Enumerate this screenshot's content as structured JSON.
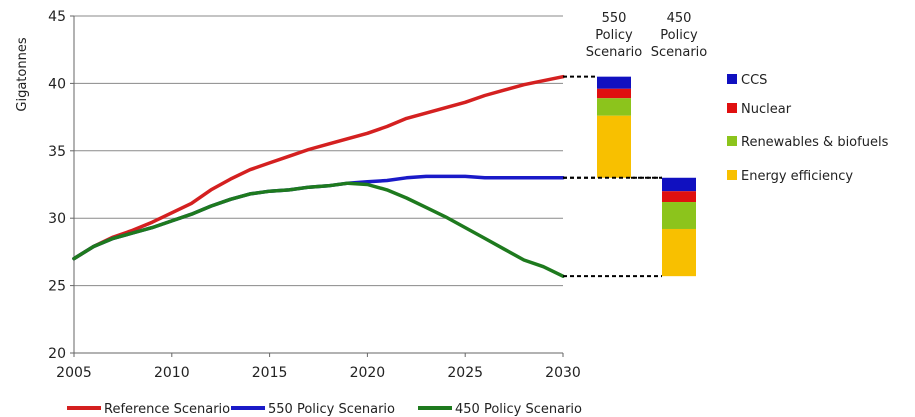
{
  "chart_data": {
    "type": "line",
    "title": "",
    "xlabel": "",
    "ylabel": "Gigatonnes",
    "xlim": [
      2005,
      2030
    ],
    "ylim": [
      20,
      45
    ],
    "x_ticks": [
      "2005",
      "2010",
      "2015",
      "2020",
      "2025",
      "2030"
    ],
    "y_ticks": [
      "20",
      "25",
      "30",
      "35",
      "40",
      "45"
    ],
    "grid": "horizontal",
    "legend_position": "bottom",
    "series": [
      {
        "name": "Reference Scenario",
        "color": "#d42020",
        "x": [
          2005,
          2006,
          2007,
          2008,
          2009,
          2010,
          2011,
          2012,
          2013,
          2014,
          2015,
          2016,
          2017,
          2018,
          2019,
          2020,
          2021,
          2022,
          2023,
          2024,
          2025,
          2026,
          2027,
          2028,
          2029,
          2030
        ],
        "values": [
          27.0,
          27.9,
          28.6,
          29.1,
          29.7,
          30.4,
          31.1,
          32.1,
          32.9,
          33.6,
          34.1,
          34.6,
          35.1,
          35.5,
          35.9,
          36.3,
          36.8,
          37.4,
          37.8,
          38.2,
          38.6,
          39.1,
          39.5,
          39.9,
          40.2,
          40.5
        ]
      },
      {
        "name": "550 Policy Scenario",
        "color": "#1a1ac8",
        "x": [
          2005,
          2006,
          2007,
          2008,
          2009,
          2010,
          2011,
          2012,
          2013,
          2014,
          2015,
          2016,
          2017,
          2018,
          2019,
          2020,
          2021,
          2022,
          2023,
          2024,
          2025,
          2026,
          2027,
          2028,
          2029,
          2030
        ],
        "values": [
          27.0,
          27.9,
          28.5,
          28.9,
          29.3,
          29.8,
          30.3,
          30.9,
          31.4,
          31.8,
          32.0,
          32.1,
          32.3,
          32.4,
          32.6,
          32.7,
          32.8,
          33.0,
          33.1,
          33.1,
          33.1,
          33.0,
          33.0,
          33.0,
          33.0,
          33.0
        ]
      },
      {
        "name": "450 Policy Scenario",
        "color": "#1e7a1e",
        "x": [
          2005,
          2006,
          2007,
          2008,
          2009,
          2010,
          2011,
          2012,
          2013,
          2014,
          2015,
          2016,
          2017,
          2018,
          2019,
          2020,
          2021,
          2022,
          2023,
          2024,
          2025,
          2026,
          2027,
          2028,
          2029,
          2030
        ],
        "values": [
          27.0,
          27.9,
          28.5,
          28.9,
          29.3,
          29.8,
          30.3,
          30.9,
          31.4,
          31.8,
          32.0,
          32.1,
          32.3,
          32.4,
          32.6,
          32.5,
          32.1,
          31.5,
          30.8,
          30.1,
          29.3,
          28.5,
          27.7,
          26.9,
          26.4,
          25.7
        ]
      }
    ],
    "wedges": [
      {
        "label": [
          "550",
          "Policy",
          "Scenario"
        ],
        "from": 40.5,
        "to": 33.0,
        "segments": [
          {
            "name": "CCS",
            "values": [
              0.9
            ]
          },
          {
            "name": "Nuclear",
            "values": [
              0.7
            ]
          },
          {
            "name": "Renewables & biofuels",
            "values": [
              1.3
            ]
          },
          {
            "name": "Energy efficiency",
            "values": [
              4.6
            ]
          }
        ]
      },
      {
        "label": [
          "450",
          "Policy",
          "Scenario"
        ],
        "from": 33.0,
        "to": 25.7,
        "segments": [
          {
            "name": "CCS",
            "values": [
              1.0
            ]
          },
          {
            "name": "Nuclear",
            "values": [
              0.8
            ]
          },
          {
            "name": "Renewables & biofuels",
            "values": [
              2.0
            ]
          },
          {
            "name": "Energy efficiency",
            "values": [
              3.5
            ]
          }
        ]
      }
    ],
    "segment_legend": [
      {
        "name": "CCS",
        "color": "#1010c0"
      },
      {
        "name": "Nuclear",
        "color": "#e01010"
      },
      {
        "name": "Renewables & biofuels",
        "color": "#8cc41c"
      },
      {
        "name": "Energy efficiency",
        "color": "#f8c000"
      }
    ]
  }
}
